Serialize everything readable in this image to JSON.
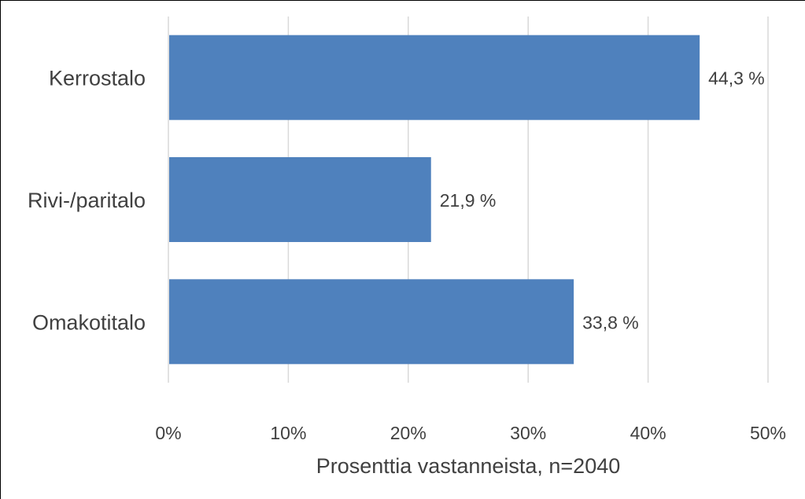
{
  "chart_data": {
    "type": "bar",
    "orientation": "horizontal",
    "categories": [
      "Kerrostalo",
      "Rivi-/paritalo",
      "Omakotitalo"
    ],
    "values": [
      44.3,
      21.9,
      33.8
    ],
    "data_labels": [
      "44,3 %",
      "21,9 %",
      "33,8 %"
    ],
    "xlabel": "Prosenttia vastanneista, n=2040",
    "xlim": [
      0,
      50
    ],
    "x_ticks": [
      0,
      10,
      20,
      30,
      40,
      50
    ],
    "x_tick_labels": [
      "0%",
      "10%",
      "20%",
      "30%",
      "40%",
      "50%"
    ],
    "grid": true,
    "legend": "none",
    "bar_color": "#4f81bd"
  }
}
